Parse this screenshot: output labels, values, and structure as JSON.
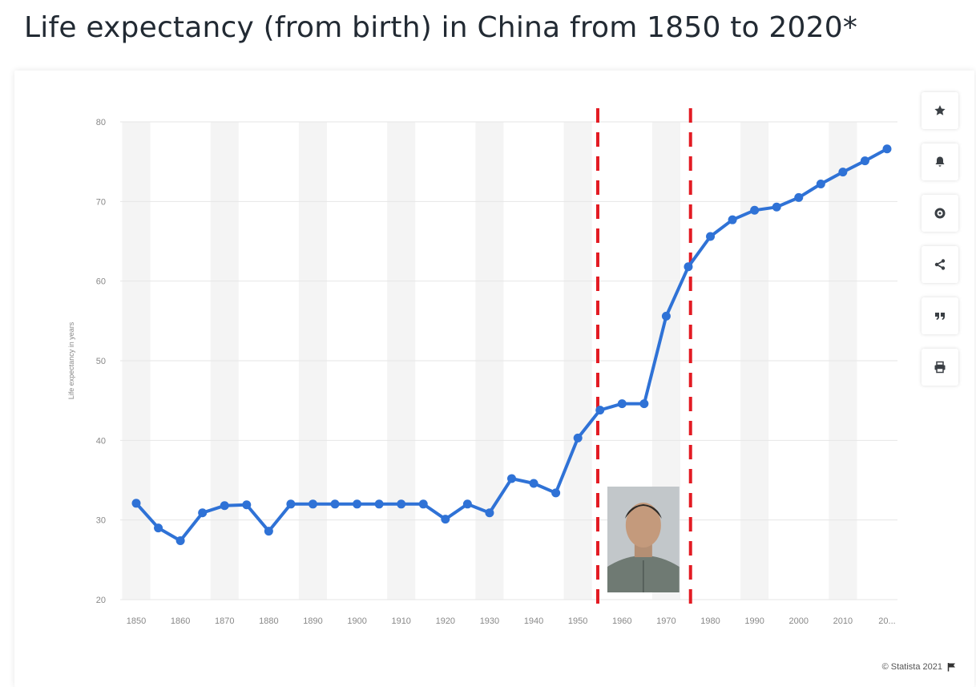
{
  "page": {
    "title": "Life expectancy (from birth) in China from 1850 to 2020*",
    "credit": "© Statista 2021"
  },
  "toolbar": {
    "items": [
      {
        "icon": "star-icon"
      },
      {
        "icon": "bell-icon"
      },
      {
        "icon": "gear-icon"
      },
      {
        "icon": "share-icon"
      },
      {
        "icon": "quote-icon"
      },
      {
        "icon": "print-icon"
      }
    ]
  },
  "colors": {
    "line": "#2f72d6",
    "marker_line": "#e31b23",
    "grid": "#e6e6e6",
    "band": "#f4f4f4",
    "tick": "#888888"
  },
  "chart_data": {
    "type": "line",
    "title": "Life expectancy (from birth) in China from 1850 to 2020*",
    "xlabel": "",
    "ylabel": "Life expectancy in years",
    "ylim": [
      20,
      80
    ],
    "yticks": [
      20,
      30,
      40,
      50,
      60,
      70,
      80
    ],
    "xticks": [
      "1850",
      "1860",
      "1870",
      "1880",
      "1890",
      "1900",
      "1910",
      "1920",
      "1930",
      "1940",
      "1950",
      "1960",
      "1970",
      "1980",
      "1990",
      "2000",
      "2010",
      "20..."
    ],
    "grid": true,
    "legend": "none",
    "x": [
      1850,
      1855,
      1860,
      1865,
      1870,
      1875,
      1880,
      1885,
      1890,
      1895,
      1900,
      1905,
      1910,
      1915,
      1920,
      1925,
      1930,
      1935,
      1940,
      1945,
      1950,
      1955,
      1960,
      1965,
      1970,
      1975,
      1980,
      1985,
      1990,
      1995,
      2000,
      2005,
      2010,
      2015,
      2020
    ],
    "series": [
      {
        "values": [
          32.1,
          29.0,
          27.4,
          30.9,
          31.8,
          31.9,
          28.6,
          32.0,
          32.0,
          32.0,
          32.0,
          32.0,
          32.0,
          32.0,
          30.1,
          32.0,
          30.9,
          35.2,
          34.6,
          33.4,
          40.3,
          43.8,
          44.6,
          44.6,
          55.6,
          61.8,
          65.6,
          67.7,
          68.9,
          69.3,
          70.5,
          72.2,
          73.7,
          75.1,
          76.6
        ]
      }
    ],
    "annotations": {
      "vertical_lines_x": [
        1954.5,
        1975.5
      ],
      "portrait_between_lines": true
    }
  }
}
